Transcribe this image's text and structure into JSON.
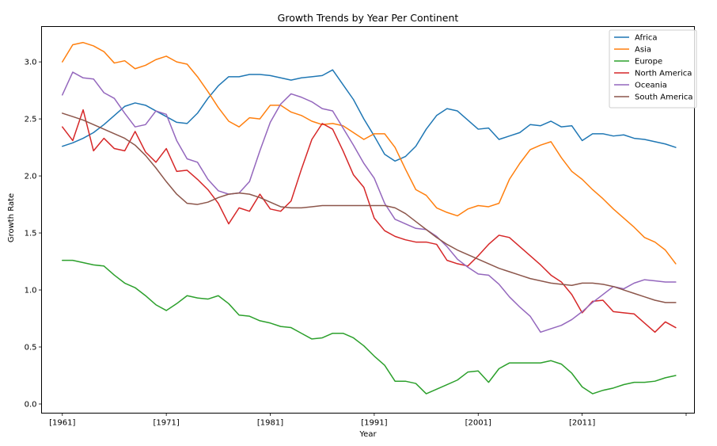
{
  "chart_data": {
    "type": "line",
    "title": "Growth Trends by Year Per Continent",
    "xlabel": "Year",
    "ylabel": "Growth Rate",
    "xlim": [
      1959.95,
      1970.75
    ],
    "ylim": [
      -0.08,
      3.31
    ],
    "x_tick_positions": [
      1961,
      1971,
      1981,
      1991,
      2001,
      2011
    ],
    "x_tick_labels": [
      "[1961]",
      "[1971]",
      "[1981]",
      "[1991]",
      "[2001]",
      "[2011]"
    ],
    "y_ticks": [
      0.0,
      0.5,
      1.0,
      1.5,
      2.0,
      2.5,
      3.0
    ],
    "y_tick_labels": [
      "0.0",
      "0.5",
      "1.0",
      "1.5",
      "2.0",
      "2.5",
      "3.0"
    ],
    "x_start": 1961,
    "x_end": 2020,
    "grid": false,
    "legend_position": "top-right",
    "series": [
      {
        "name": "Africa",
        "color": "#1f77b4",
        "values": [
          2.26,
          2.29,
          2.33,
          2.38,
          2.45,
          2.53,
          2.61,
          2.64,
          2.62,
          2.57,
          2.52,
          2.47,
          2.46,
          2.55,
          2.68,
          2.79,
          2.87,
          2.87,
          2.89,
          2.89,
          2.88,
          2.86,
          2.84,
          2.86,
          2.87,
          2.88,
          2.93,
          2.8,
          2.67,
          2.5,
          2.35,
          2.19,
          2.13,
          2.17,
          2.26,
          2.41,
          2.53,
          2.59,
          2.57,
          2.49,
          2.41,
          2.42,
          2.32,
          2.35,
          2.38,
          2.45,
          2.44,
          2.48,
          2.43,
          2.44,
          2.31,
          2.37,
          2.37,
          2.35,
          2.36,
          2.33,
          2.32,
          2.3,
          2.28,
          2.25
        ]
      },
      {
        "name": "Asia",
        "color": "#ff7f0e",
        "values": [
          3.0,
          3.15,
          3.17,
          3.14,
          3.09,
          2.99,
          3.01,
          2.94,
          2.97,
          3.02,
          3.05,
          3.0,
          2.98,
          2.87,
          2.74,
          2.6,
          2.48,
          2.43,
          2.51,
          2.5,
          2.62,
          2.62,
          2.56,
          2.53,
          2.48,
          2.45,
          2.46,
          2.44,
          2.38,
          2.32,
          2.37,
          2.37,
          2.25,
          2.06,
          1.88,
          1.83,
          1.72,
          1.68,
          1.65,
          1.71,
          1.74,
          1.73,
          1.76,
          1.97,
          2.11,
          2.23,
          2.27,
          2.3,
          2.16,
          2.04,
          1.97,
          1.88,
          1.8,
          1.71,
          1.63,
          1.55,
          1.46,
          1.42,
          1.35,
          1.23
        ]
      },
      {
        "name": "Europe",
        "color": "#2ca02c",
        "values": [
          1.26,
          1.26,
          1.24,
          1.22,
          1.21,
          1.13,
          1.06,
          1.02,
          0.95,
          0.87,
          0.82,
          0.88,
          0.95,
          0.93,
          0.92,
          0.95,
          0.88,
          0.78,
          0.77,
          0.73,
          0.71,
          0.68,
          0.67,
          0.62,
          0.57,
          0.58,
          0.62,
          0.62,
          0.58,
          0.51,
          0.42,
          0.34,
          0.2,
          0.2,
          0.18,
          0.09,
          0.13,
          0.17,
          0.21,
          0.28,
          0.29,
          0.19,
          0.31,
          0.36,
          0.36,
          0.36,
          0.36,
          0.38,
          0.35,
          0.27,
          0.15,
          0.09,
          0.12,
          0.14,
          0.17,
          0.19,
          0.19,
          0.2,
          0.23,
          0.25
        ]
      },
      {
        "name": "North America",
        "color": "#d62728",
        "values": [
          2.43,
          2.31,
          2.58,
          2.22,
          2.33,
          2.24,
          2.22,
          2.39,
          2.21,
          2.12,
          2.24,
          2.04,
          2.05,
          1.97,
          1.88,
          1.76,
          1.58,
          1.72,
          1.69,
          1.84,
          1.71,
          1.69,
          1.78,
          2.06,
          2.32,
          2.46,
          2.41,
          2.22,
          2.01,
          1.9,
          1.63,
          1.52,
          1.47,
          1.44,
          1.42,
          1.42,
          1.4,
          1.26,
          1.23,
          1.21,
          1.3,
          1.4,
          1.48,
          1.46,
          1.38,
          1.3,
          1.22,
          1.13,
          1.07,
          0.96,
          0.8,
          0.9,
          0.91,
          0.81,
          0.8,
          0.79,
          0.71,
          0.63,
          0.72,
          0.67
        ]
      },
      {
        "name": "Oceania",
        "color": "#9467bd",
        "values": [
          2.71,
          2.91,
          2.86,
          2.85,
          2.73,
          2.68,
          2.55,
          2.43,
          2.45,
          2.57,
          2.54,
          2.31,
          2.15,
          2.12,
          1.97,
          1.87,
          1.84,
          1.85,
          1.95,
          2.22,
          2.47,
          2.63,
          2.72,
          2.69,
          2.65,
          2.59,
          2.57,
          2.42,
          2.27,
          2.11,
          1.98,
          1.76,
          1.62,
          1.58,
          1.54,
          1.53,
          1.47,
          1.38,
          1.27,
          1.2,
          1.14,
          1.13,
          1.05,
          0.94,
          0.85,
          0.77,
          0.63,
          0.66,
          0.69,
          0.74,
          0.81,
          0.89,
          0.96,
          1.03,
          1.01,
          1.06,
          1.09,
          1.08,
          1.07,
          1.07
        ]
      },
      {
        "name": "South America",
        "color": "#8c564b",
        "values": [
          2.55,
          2.52,
          2.49,
          2.45,
          2.41,
          2.37,
          2.33,
          2.27,
          2.18,
          2.07,
          1.95,
          1.84,
          1.76,
          1.75,
          1.77,
          1.81,
          1.84,
          1.85,
          1.84,
          1.81,
          1.77,
          1.73,
          1.72,
          1.72,
          1.73,
          1.74,
          1.74,
          1.74,
          1.74,
          1.74,
          1.74,
          1.74,
          1.72,
          1.67,
          1.6,
          1.53,
          1.46,
          1.4,
          1.35,
          1.31,
          1.27,
          1.23,
          1.19,
          1.16,
          1.13,
          1.1,
          1.08,
          1.06,
          1.05,
          1.04,
          1.06,
          1.06,
          1.05,
          1.03,
          1.0,
          0.97,
          0.94,
          0.91,
          0.89,
          0.89
        ]
      }
    ]
  }
}
